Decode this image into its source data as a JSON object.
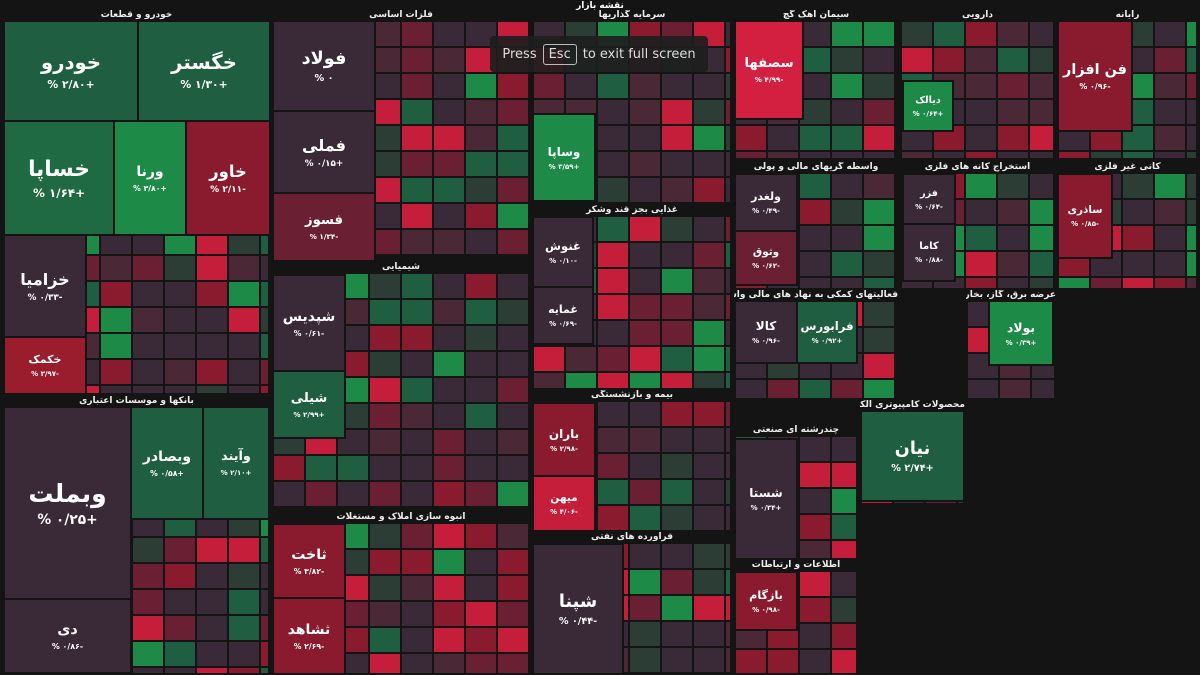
{
  "title": "نقشه بازار",
  "overlay": {
    "press": "Press",
    "key": "Esc",
    "rest": "to exit full screen"
  },
  "sectors": [
    {
      "name": "خودرو و قطعات",
      "tiles": [
        {
          "name": "خودرو",
          "change": "+۲/۸۰ %",
          "color": "#1f5e40"
        },
        {
          "name": "خگستر",
          "change": "+۱/۳۰ %",
          "color": "#1f5e40"
        },
        {
          "name": "خساپا",
          "change": "+۱/۶۴ %",
          "color": "#1f6a42"
        },
        {
          "name": "ورنا",
          "change": "+۳/۸۰ %",
          "color": "#1d8a48"
        },
        {
          "name": "خاور",
          "change": "-۲/۱۱ %",
          "color": "#8a1a2e"
        },
        {
          "name": "خزامیا",
          "change": "-۰/۳۳ %",
          "color": "#3a2a38"
        },
        {
          "name": "خکمک",
          "change": "-۳/۹۷ %",
          "color": "#9a1d2e"
        }
      ]
    },
    {
      "name": "بانکها و موسسات اعتباری",
      "tiles": [
        {
          "name": "وبملت",
          "change": "+۰/۲۵ %",
          "color": "#3a2a38"
        },
        {
          "name": "وبصادر",
          "change": "+۰/۵۸ %",
          "color": "#1f5e40"
        },
        {
          "name": "وآیند",
          "change": "+۲/۱۰ %",
          "color": "#1f5e40"
        },
        {
          "name": "دی",
          "change": "-۰/۸۶ %",
          "color": "#3a2a38"
        }
      ]
    },
    {
      "name": "فلزات اساسی",
      "tiles": [
        {
          "name": "فولاد",
          "change": "۰ %",
          "color": "#3a2a38"
        },
        {
          "name": "فملی",
          "change": "+۰/۱۵ %",
          "color": "#3a2a38"
        },
        {
          "name": "فسوز",
          "change": "-۱/۳۴ %",
          "color": "#6b1f33"
        }
      ]
    },
    {
      "name": "شیمیایی",
      "tiles": [
        {
          "name": "شپدیس",
          "change": "-۰/۶۱ %",
          "color": "#3a2a38"
        },
        {
          "name": "شیلی",
          "change": "+۲/۹۹ %",
          "color": "#1f5e40"
        }
      ]
    },
    {
      "name": "انبوه سازی املاک و مستغلات",
      "tiles": [
        {
          "name": "ثاخت",
          "change": "-۳/۸۲ %",
          "color": "#8a1a2e"
        },
        {
          "name": "ثشاهد",
          "change": "-۲/۶۹ %",
          "color": "#8a1a2e"
        }
      ]
    },
    {
      "name": "سرمایه گذاریها",
      "tiles": [
        {
          "name": "وساپا",
          "change": "+۳/۵۹ %",
          "color": "#1d8a48"
        }
      ]
    },
    {
      "name": "غذایی بجز قند وشکر",
      "tiles": [
        {
          "name": "غنوش",
          "change": "-۰/۱۰ %",
          "color": "#3a2a38"
        },
        {
          "name": "غمایه",
          "change": "-۰/۶۹ %",
          "color": "#3a2a38"
        }
      ]
    },
    {
      "name": "بیمه و بازنشستگی",
      "tiles": [
        {
          "name": "باران",
          "change": "-۲/۹۸ %",
          "color": "#8a1a2e"
        },
        {
          "name": "میهن",
          "change": "-۴/۰۶ %",
          "color": "#c41e3a"
        }
      ]
    },
    {
      "name": "فراورده های نفتی",
      "tiles": [
        {
          "name": "شپنا",
          "change": "-۰/۴۴ %",
          "color": "#3a2a38"
        }
      ]
    },
    {
      "name": "سیمان آهک گچ",
      "tiles": [
        {
          "name": "سصفها",
          "change": "-۴/۹۹ %",
          "color": "#d42040"
        }
      ]
    },
    {
      "name": "واسطه گریهای مالی و پولی",
      "tiles": [
        {
          "name": "ولغدر",
          "change": "-۰/۴۹ %",
          "color": "#3a2a38"
        },
        {
          "name": "وثوق",
          "change": "-۰/۶۲ %",
          "color": "#6b1f33"
        }
      ]
    },
    {
      "name": "فعالیتهای کمکی به نهاد های مالی واسط",
      "tiles": [
        {
          "name": "کالا",
          "change": "-۰/۹۶ %",
          "color": "#3a2a38"
        },
        {
          "name": "فرابورس",
          "change": "+۰/۹۲ %",
          "color": "#1f5e40"
        }
      ]
    },
    {
      "name": "چندرشته ای صنعتی",
      "tiles": [
        {
          "name": "شستا",
          "change": "+۰/۳۴ %",
          "color": "#3a2a38"
        }
      ]
    },
    {
      "name": "اطلاعات و ارتباطات",
      "tiles": [
        {
          "name": "بازگام",
          "change": "-۰/۹۸ %",
          "color": "#8a1a2e"
        }
      ]
    },
    {
      "name": "محصولات کامپیوتری الکترونیکی و نوری",
      "tiles": [
        {
          "name": "نیان",
          "change": "+۲/۷۴ %",
          "color": "#1f5e40"
        }
      ]
    },
    {
      "name": "دارویی",
      "tiles": [
        {
          "name": "دیالک",
          "change": "+۰/۶۴ %",
          "color": "#1d8a48"
        }
      ]
    },
    {
      "name": "رایانه",
      "tiles": [
        {
          "name": "فن افزار",
          "change": "-۰/۹۶ %",
          "color": "#8a1a2e"
        }
      ]
    },
    {
      "name": "کانی غیر فلزی",
      "tiles": [
        {
          "name": "ساذری",
          "change": "-۰/۸۵ %",
          "color": "#8a1a2e"
        }
      ]
    },
    {
      "name": "استخراج کانه های فلزی",
      "tiles": [
        {
          "name": "فزر",
          "change": "-۰/۶۴ %",
          "color": "#3a2a38"
        },
        {
          "name": "کاما",
          "change": "-۰/۸۸ %",
          "color": "#3a2a38"
        }
      ]
    },
    {
      "name": "عرضه برق، گاز، بخاروآب گرم",
      "tiles": [
        {
          "name": "بولاد",
          "change": "+۰/۳۹ %",
          "color": "#1d8a48"
        }
      ]
    }
  ]
}
